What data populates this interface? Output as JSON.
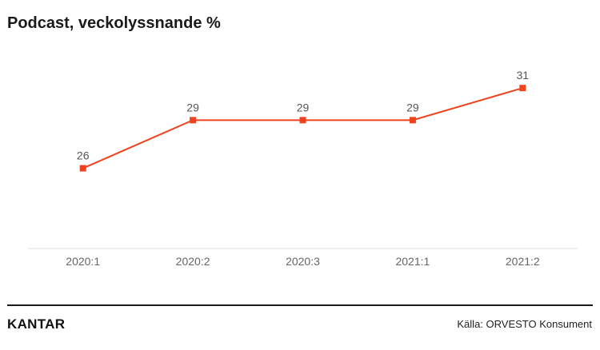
{
  "title": "Podcast, veckolyssnande %",
  "footer": {
    "logo": "KANTAR",
    "source": "Källa: ORVESTO Konsument"
  },
  "colors": {
    "series": "#f0421c",
    "axis_text": "#666666",
    "value_text": "#555555",
    "baseline": "#dddddd"
  },
  "chart_data": {
    "type": "line",
    "title": "Podcast, veckolyssnande %",
    "categories": [
      "2020:1",
      "2020:2",
      "2020:3",
      "2021:1",
      "2021:2"
    ],
    "series": [
      {
        "values": [
          26,
          29,
          29,
          29,
          31
        ]
      }
    ],
    "ylim": [
      21,
      33
    ],
    "grid": false,
    "legend": "none",
    "data_labels": true
  }
}
